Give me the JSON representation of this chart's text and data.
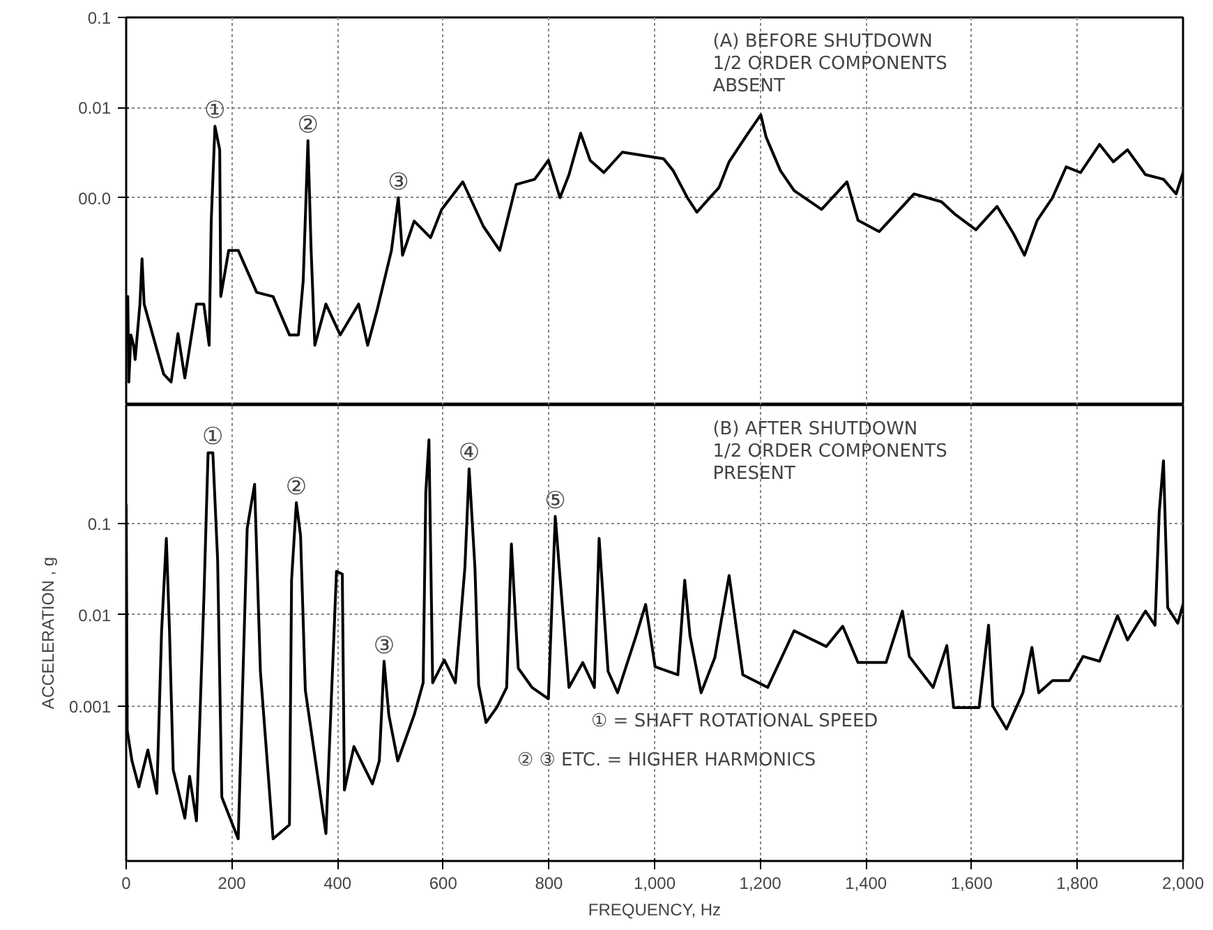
{
  "chart_data": [
    {
      "type": "line",
      "log": true,
      "xlim": [
        0,
        2000
      ],
      "ylim": [
        5e-06,
        0.1
      ],
      "tick_labels": "y",
      "grid": true,
      "line_style": "solid",
      "xticks": [
        0,
        200,
        400,
        600,
        800,
        1000,
        1200,
        1400,
        1600,
        1800,
        2000
      ],
      "yticks": [
        0.1,
        0.01,
        {
          "value": 0.001,
          "label": "00.0"
        }
      ],
      "annotations": [
        "(A) BEFORE SHUTDOWN\n1/2 ORDER COMPONENTS\nABSENT",
        {
          "text": "①",
          "x": 168,
          "y": 0.0062
        },
        {
          "text": "②",
          "x": 344,
          "y": 0.0043
        },
        {
          "text": "③",
          "x": 515,
          "y": 0.001
        }
      ],
      "series": [
        {
          "color": "#000000",
          "x": [
            3,
            5,
            9,
            14,
            17,
            26,
            30,
            34,
            71,
            85,
            98,
            111,
            133,
            147,
            157,
            161,
            168,
            177,
            179,
            194,
            212,
            247,
            278,
            309,
            326,
            335,
            344,
            350,
            357,
            378,
            405,
            440,
            457,
            475,
            502,
            515,
            523,
            545,
            576,
            597,
            637,
            676,
            707,
            738,
            773,
            799,
            821,
            838,
            860,
            878,
            904,
            939,
            1017,
            1035,
            1062,
            1080,
            1122,
            1141,
            1175,
            1201,
            1211,
            1238,
            1264,
            1316,
            1364,
            1385,
            1425,
            1491,
            1543,
            1569,
            1608,
            1648,
            1679,
            1700,
            1724,
            1753,
            1779,
            1806,
            1842,
            1868,
            1895,
            1929,
            1963,
            1987,
            2000
          ],
          "values": [
            8e-05,
            9e-06,
            3e-05,
            2.3e-05,
            1.6e-05,
            6.6e-05,
            0.00021,
            6.6e-05,
            1.1e-05,
            9e-06,
            3.1e-05,
            1e-05,
            6.6e-05,
            6.6e-05,
            2.3e-05,
            0.00056,
            0.0062,
            0.0034,
            8e-05,
            0.00026,
            0.00026,
            8.9e-05,
            8e-05,
            3e-05,
            3e-05,
            0.00012,
            0.0043,
            0.00026,
            2.3e-05,
            6.6e-05,
            3e-05,
            6.6e-05,
            2.3e-05,
            5.7e-05,
            0.00026,
            0.001,
            0.00023,
            0.00055,
            0.00036,
            0.00074,
            0.0015,
            0.00048,
            0.00026,
            0.0014,
            0.0016,
            0.0026,
            0.001,
            0.0018,
            0.0052,
            0.0026,
            0.0019,
            0.0032,
            0.0027,
            0.002,
            0.001,
            0.00069,
            0.0013,
            0.0025,
            0.005,
            0.0083,
            0.0047,
            0.002,
            0.0012,
            0.00074,
            0.0015,
            0.00056,
            0.00042,
            0.0011,
            0.0009,
            0.00065,
            0.00044,
            0.0008,
            0.0004,
            0.00023,
            0.00056,
            0.001,
            0.0022,
            0.0019,
            0.0039,
            0.0025,
            0.0034,
            0.0018,
            0.0016,
            0.0011,
            0.0019
          ]
        }
      ]
    },
    {
      "type": "line",
      "log": true,
      "xlim": [
        0,
        2000
      ],
      "ylim": [
        2e-05,
        2
      ],
      "grid": true,
      "line_style": "solid",
      "xlabel": "FREQUENCY, Hz",
      "ylabel": "ACCELERATION , g",
      "xticks": [
        0,
        200,
        400,
        600,
        800,
        {
          "value": 1000,
          "label": "1,000"
        },
        {
          "value": 1200,
          "label": "1,200"
        },
        {
          "value": 1400,
          "label": "1,400"
        },
        {
          "value": 1600,
          "label": "1,600"
        },
        {
          "value": 1800,
          "label": "1,800"
        },
        {
          "value": 2000,
          "label": "2,000"
        }
      ],
      "yticks": [
        0.1,
        0.01,
        0.001
      ],
      "annotations": [
        "(B) AFTER SHUTDOWN\n1/2 ORDER COMPONENTS\nPRESENT",
        "①   =  SHAFT ROTATIONAL SPEED",
        "② ③ ETC.  =  HIGHER HARMONICS",
        {
          "text": "①",
          "x": 164,
          "y": 0.6
        },
        {
          "text": "②",
          "x": 322,
          "y": 0.17
        },
        {
          "text": "③",
          "x": 488,
          "y": 0.0031
        },
        {
          "text": "④",
          "x": 649,
          "y": 0.4
        },
        {
          "text": "⑤",
          "x": 812,
          "y": 0.12
        }
      ],
      "series": [
        {
          "color": "#000000",
          "x": [
            0,
            2,
            11,
            24,
            41,
            58,
            67,
            76,
            82,
            89,
            111,
            120,
            133,
            147,
            155,
            164,
            173,
            181,
            212,
            229,
            243,
            254,
            278,
            309,
            313,
            322,
            330,
            339,
            378,
            398,
            409,
            413,
            431,
            466,
            479,
            488,
            497,
            514,
            545,
            562,
            567,
            573,
            580,
            602,
            623,
            641,
            649,
            660,
            667,
            681,
            702,
            720,
            729,
            742,
            768,
            799,
            812,
            821,
            838,
            864,
            886,
            895,
            912,
            930,
            965,
            983,
            1001,
            1044,
            1057,
            1067,
            1088,
            1114,
            1141,
            1167,
            1214,
            1264,
            1325,
            1356,
            1385,
            1438,
            1469,
            1482,
            1527,
            1553,
            1566,
            1614,
            1632,
            1640,
            1666,
            1697,
            1714,
            1727,
            1753,
            1785,
            1811,
            1842,
            1876,
            1895,
            1929,
            1947,
            1955,
            1963,
            1971,
            1990,
            2000
          ],
          "values": [
            0.16,
            0.00054,
            0.00025,
            0.00013,
            0.00033,
            0.00011,
            0.0066,
            0.069,
            0.0066,
            0.0002,
            5.9e-05,
            0.00017,
            5.5e-05,
            0.015,
            0.6,
            0.6,
            0.041,
            0.0001,
            3.5e-05,
            0.089,
            0.27,
            0.0024,
            3.5e-05,
            5e-05,
            0.024,
            0.17,
            0.074,
            0.0015,
            4e-05,
            0.03,
            0.028,
            0.00012,
            0.00036,
            0.00014,
            0.00025,
            0.0031,
            0.0008,
            0.00025,
            0.0008,
            0.0018,
            0.22,
            0.83,
            0.0018,
            0.0032,
            0.0018,
            0.033,
            0.4,
            0.033,
            0.0017,
            0.00066,
            0.00098,
            0.0016,
            0.06,
            0.0026,
            0.0016,
            0.0012,
            0.12,
            0.026,
            0.0016,
            0.003,
            0.0016,
            0.069,
            0.0024,
            0.0014,
            0.0059,
            0.013,
            0.0027,
            0.0022,
            0.024,
            0.0059,
            0.0014,
            0.0034,
            0.027,
            0.0022,
            0.0016,
            0.0067,
            0.0045,
            0.0075,
            0.003,
            0.003,
            0.011,
            0.0035,
            0.0016,
            0.0046,
            0.00096,
            0.00096,
            0.0077,
            0.001,
            0.00056,
            0.0014,
            0.0044,
            0.0014,
            0.0019,
            0.0019,
            0.0035,
            0.0031,
            0.0098,
            0.0053,
            0.011,
            0.0077,
            0.135,
            0.49,
            0.012,
            0.0081,
            0.013
          ]
        }
      ]
    }
  ]
}
